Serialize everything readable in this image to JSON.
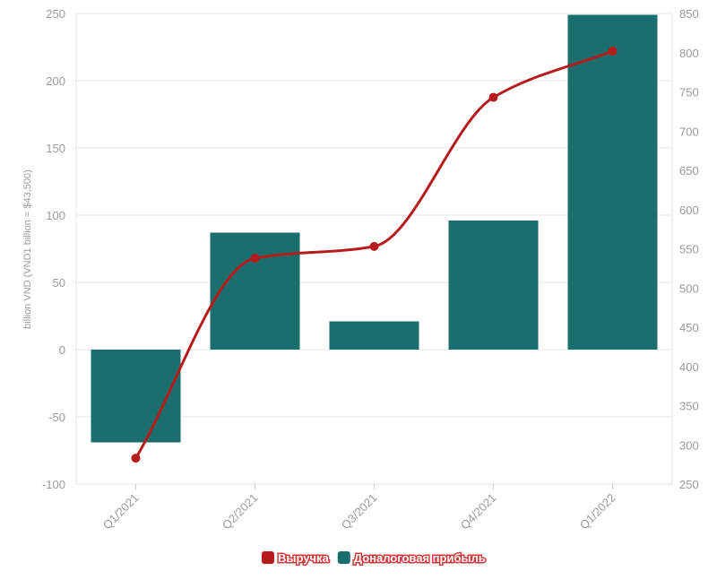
{
  "chart_data": {
    "type": "bar",
    "categories": [
      "Q1/2021",
      "Q2/2021",
      "Q3/2021",
      "Q4/2021",
      "Q1/2022"
    ],
    "ylabel": "billion VND (VND1 billion = $43,500)",
    "y_left_ticks": [
      250,
      200,
      150,
      100,
      50,
      0,
      -50,
      -100
    ],
    "y_left_range": [
      -100,
      250
    ],
    "y_right_ticks": [
      850,
      800,
      750,
      700,
      650,
      600,
      550,
      500,
      450,
      400,
      350,
      300,
      250
    ],
    "y_right_range": [
      250,
      850
    ],
    "grid": true,
    "legend_position": "bottom-center",
    "series": [
      {
        "name": "Выручка",
        "type": "line",
        "axis": "right",
        "color": "#b71c1c",
        "values": [
          283,
          538,
          553,
          743,
          802
        ]
      },
      {
        "name": "Доналоговая прибыль",
        "type": "bar",
        "axis": "left",
        "color": "#1a6e6e",
        "values": [
          -69,
          87,
          21,
          96,
          249
        ]
      }
    ]
  }
}
